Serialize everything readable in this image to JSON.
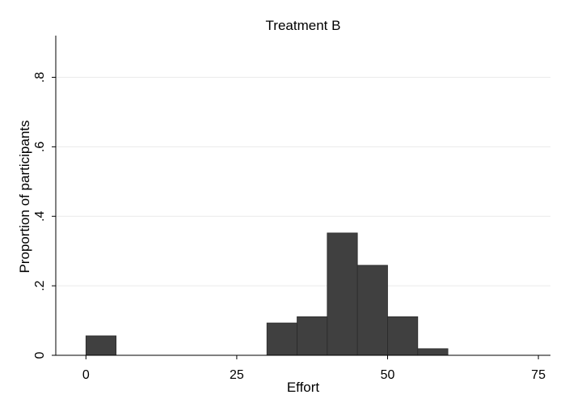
{
  "chart_data": {
    "type": "bar",
    "title": "Treatment B",
    "xlabel": "Effort",
    "ylabel": "Proportion of participants",
    "xlim": [
      -5,
      77
    ],
    "ylim": [
      0,
      0.92
    ],
    "x_ticks": [
      {
        "value": 0,
        "label": "0"
      },
      {
        "value": 25,
        "label": "25"
      },
      {
        "value": 50,
        "label": "50"
      },
      {
        "value": 75,
        "label": "75"
      }
    ],
    "y_ticks": [
      {
        "value": 0,
        "label": "0"
      },
      {
        "value": 0.2,
        "label": ".2"
      },
      {
        "value": 0.4,
        "label": ".4"
      },
      {
        "value": 0.6,
        "label": ".6"
      },
      {
        "value": 0.8,
        "label": ".8"
      }
    ],
    "grid": true,
    "bin_width": 5,
    "bins": [
      {
        "start": 0,
        "end": 5,
        "value": 0.056
      },
      {
        "start": 30,
        "end": 35,
        "value": 0.093
      },
      {
        "start": 35,
        "end": 40,
        "value": 0.111
      },
      {
        "start": 40,
        "end": 45,
        "value": 0.352
      },
      {
        "start": 45,
        "end": 50,
        "value": 0.259
      },
      {
        "start": 50,
        "end": 55,
        "value": 0.111
      },
      {
        "start": 55,
        "end": 60,
        "value": 0.019
      }
    ],
    "colors": {
      "bar_fill": "#404040",
      "bar_stroke": "#2a2a2a",
      "grid": "#eaeaea",
      "axis": "#000000"
    }
  }
}
